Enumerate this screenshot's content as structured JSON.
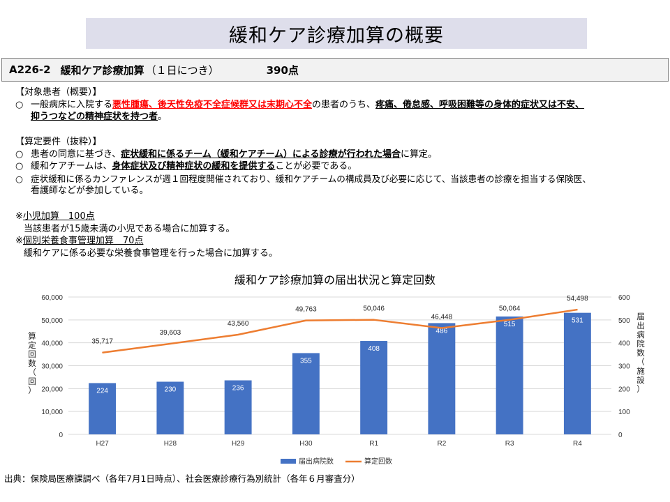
{
  "page_title": "緩和ケア診療加算の概要",
  "item": {
    "code": "A226-2",
    "name": "緩和ケア診療加算",
    "unit": "（１日につき）",
    "points": "390点"
  },
  "target": {
    "heading": "【対象患者（概要）】",
    "marker": "○",
    "p1": "一般病床に入院する",
    "p2_red": "悪性腫瘍、後天性免疫不全症候群又は末期心不全",
    "p3": "の患者のうち、",
    "p4_bold": "疼痛、倦怠感、呼吸困難等の身体的症状又は不安、",
    "p5_bold": "抑うつなどの精神症状を持つ者",
    "p6": "。"
  },
  "requirements": {
    "heading": "【算定要件（抜粋）】",
    "marker": "○",
    "r1_a": "患者の同意に基づき、",
    "r1_b": "症状緩和に係るチーム（緩和ケアチーム）による診療が行われた場合",
    "r1_c": "に算定。",
    "r2_a": "緩和ケアチームは、",
    "r2_b": "身体症状及び精神症状の緩和を提供する",
    "r2_c": "ことが必要である。",
    "r3_a": "症状緩和に係るカンファレンスが週１回程度開催されており、緩和ケアチームの構成員及び必要に応じて、当該患者の診療を担当する保険医、",
    "r3_b": "看護師などが参加している。"
  },
  "additions": {
    "mark": "※",
    "pediatric_title": "小児加算　100点",
    "pediatric_desc": "当該患者が15歳未満の小児である場合に加算する。",
    "nutrition_title": "個別栄養食事管理加算　70点",
    "nutrition_desc": "緩和ケアに係る必要な栄養食事管理を行った場合に加算する。"
  },
  "chart_data": {
    "type": "bar+line",
    "title": "緩和ケア診療加算の届出状況と算定回数",
    "categories": [
      "H27",
      "H28",
      "H29",
      "H30",
      "R1",
      "R2",
      "R3",
      "R4"
    ],
    "series": [
      {
        "name": "届出病院数",
        "type": "bar",
        "axis": "right",
        "values": [
          224,
          230,
          236,
          355,
          408,
          486,
          515,
          531
        ],
        "color": "#4472c4"
      },
      {
        "name": "算定回数",
        "type": "line",
        "axis": "left",
        "values": [
          35717,
          39603,
          43560,
          49763,
          50046,
          46448,
          50064,
          54498
        ],
        "color": "#ed7d31"
      }
    ],
    "bar_labels": [
      "224",
      "230",
      "236",
      "355",
      "408",
      "486",
      "515",
      "531"
    ],
    "line_labels": [
      "35,717",
      "39,603",
      "43,560",
      "49,763",
      "50,046",
      "46,448",
      "50,064",
      "54,498"
    ],
    "ylabel_left": "算定回数（回）",
    "ylabel_right": "届出病院数（施設）",
    "ylim_left": [
      0,
      60000
    ],
    "ylim_right": [
      0,
      600
    ],
    "yticks_left": [
      "0",
      "10,000",
      "20,000",
      "30,000",
      "40,000",
      "50,000",
      "60,000"
    ],
    "yticks_right": [
      "0",
      "100",
      "200",
      "300",
      "400",
      "500",
      "600"
    ],
    "grid": true,
    "legend_position": "bottom"
  },
  "source": "出典：保険局医療課調べ（各年7月1日時点）、社会医療診療行為別統計（各年６月審査分）"
}
